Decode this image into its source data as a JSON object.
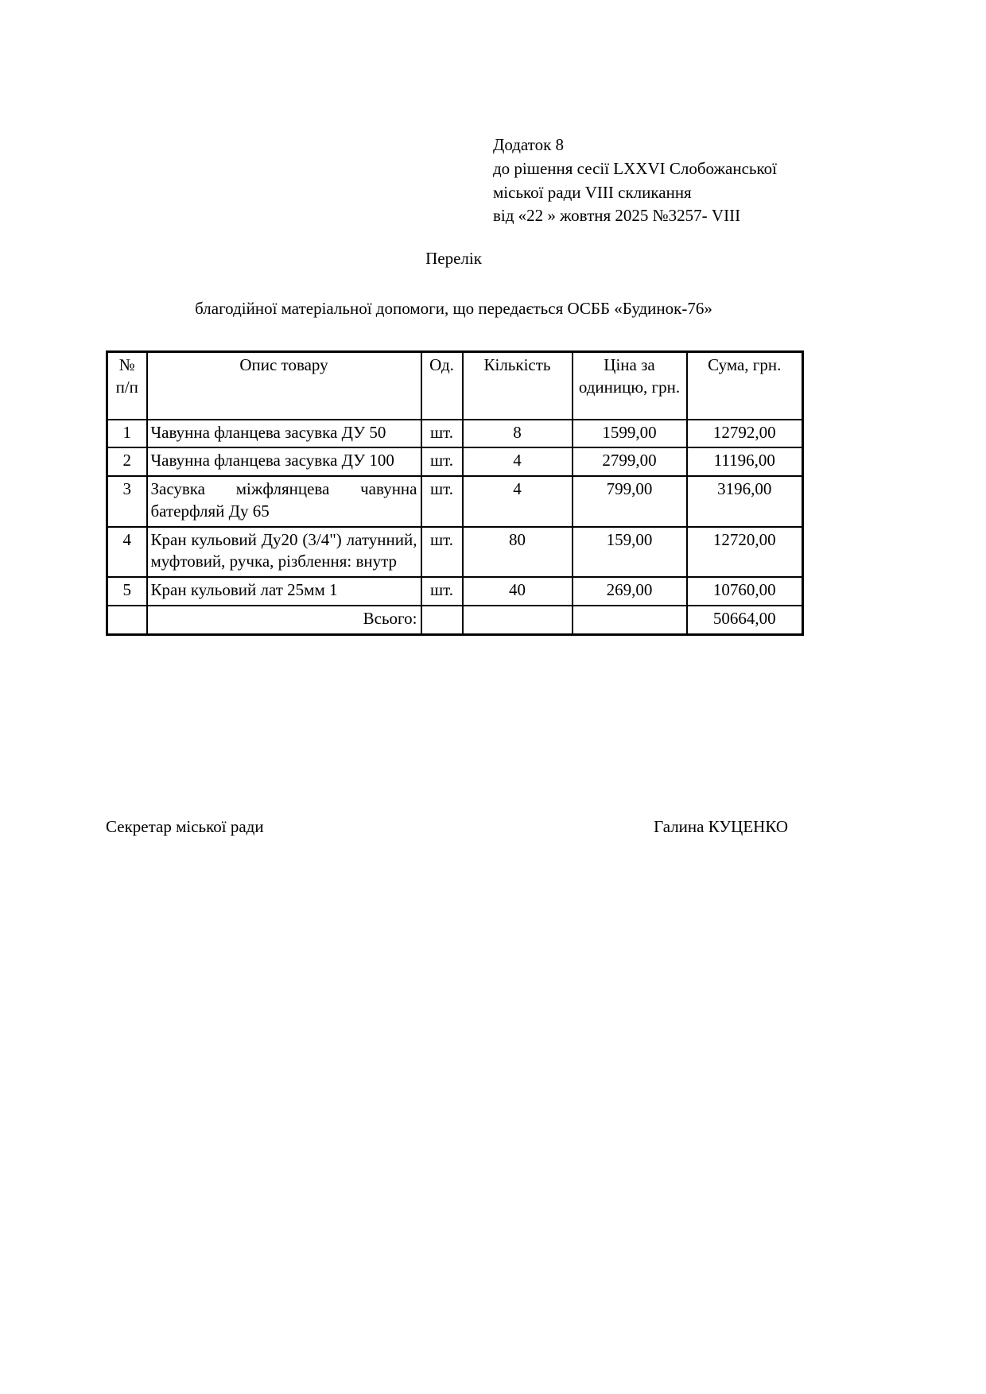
{
  "header_block": {
    "lines": [
      "Додаток 8",
      "до рішення сесії LXXVI  Слобожанської",
      "міської ради VIII скликання",
      "від «22 » жовтня 2025  №3257- VIII"
    ]
  },
  "title": "Перелік",
  "subtitle": "благодійної матеріальної допомоги, що передається ОСББ «Будинок-76»",
  "table": {
    "columns": [
      "№ п/п",
      "Опис товару",
      "Од.",
      "Кількість",
      "Ціна за одиницю, грн.",
      "Сума, грн."
    ],
    "rows": [
      {
        "num": "1",
        "desc": "Чавунна фланцева засувка ДУ 50",
        "unit": "шт.",
        "qty": "8",
        "price": "1599,00",
        "sum": "12792,00"
      },
      {
        "num": "2",
        "desc": "Чавунна фланцева засувка ДУ 100",
        "unit": "шт.",
        "qty": "4",
        "price": "2799,00",
        "sum": "11196,00"
      },
      {
        "num": "3",
        "desc": "Засувка міжфлянцева чавунна батерфляй Ду 65",
        "unit": "шт.",
        "qty": "4",
        "price": "799,00",
        "sum": "3196,00"
      },
      {
        "num": "4",
        "desc": "Кран кульовий Ду20 (3/4\") латунний, муфтовий, ручка, різблення: внутр",
        "unit": "шт.",
        "qty": "80",
        "price": "159,00",
        "sum": "12720,00"
      },
      {
        "num": "5",
        "desc": "Кран кульовий лат 25мм 1",
        "unit": "шт.",
        "qty": "40",
        "price": "269,00",
        "sum": "10760,00"
      }
    ],
    "total_label": "Всього:",
    "total_sum": "50664,00"
  },
  "footer": {
    "left": "Секретар міської ради",
    "right": "Галина КУЦЕНКО"
  }
}
